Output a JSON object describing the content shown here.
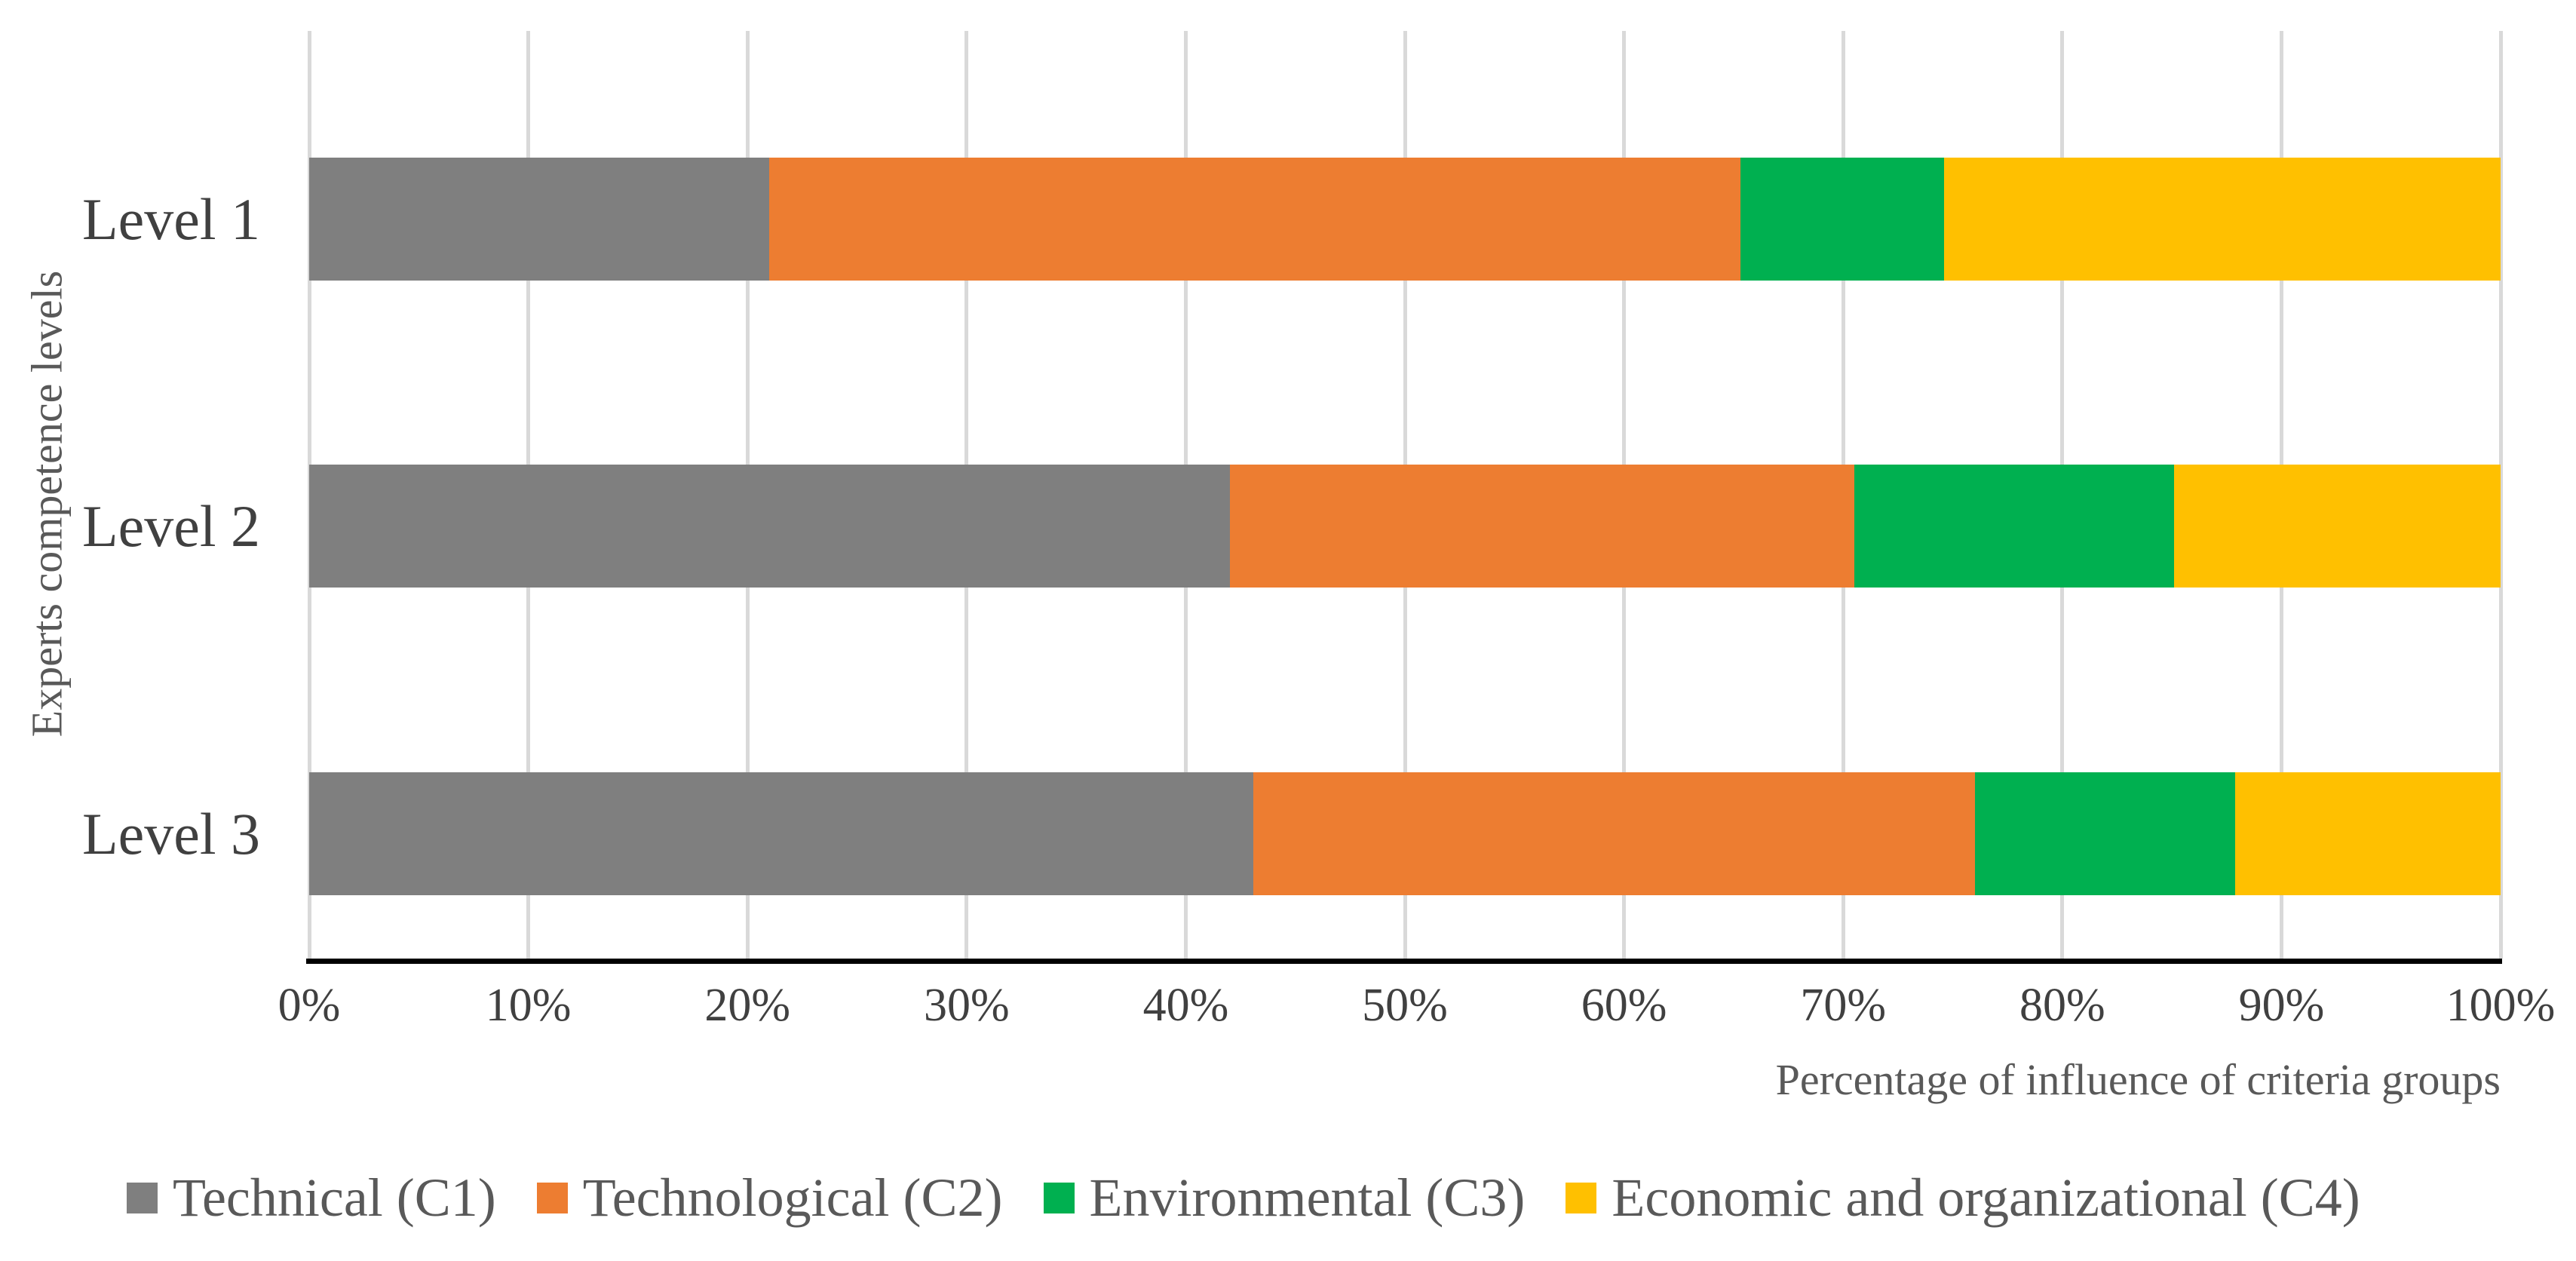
{
  "chart_data": {
    "type": "bar",
    "variant": "horizontal-stacked",
    "title": "",
    "xlabel": "Percentage of influence of criteria groups",
    "ylabel": "Experts competence levels",
    "categories": [
      "Level 1",
      "Level 2",
      "Level 3"
    ],
    "series": [
      {
        "name": "Technical (C1)",
        "color": "#7F7F7F",
        "values": [
          21.0,
          42.0,
          43.1
        ]
      },
      {
        "name": "Technological (C2)",
        "color": "#ED7D31",
        "values": [
          44.3,
          28.5,
          32.9
        ]
      },
      {
        "name": "Environmental (C3)",
        "color": "#00B050",
        "values": [
          9.3,
          14.6,
          11.9
        ]
      },
      {
        "name": "Economic and organizational (C4)",
        "color": "#FFC000",
        "values": [
          25.4,
          14.9,
          12.1
        ]
      }
    ],
    "x_ticks": [
      "0%",
      "10%",
      "20%",
      "30%",
      "40%",
      "50%",
      "60%",
      "70%",
      "80%",
      "90%",
      "100%"
    ],
    "xlim": [
      0,
      100
    ],
    "grid": "vertical",
    "gridline_color": "#D9D9D9",
    "axis_line_color": "#000000",
    "legend_position": "bottom",
    "label_text_color": "#404040",
    "title_text_color": "#595959",
    "background_color": "#FFFFFF"
  }
}
